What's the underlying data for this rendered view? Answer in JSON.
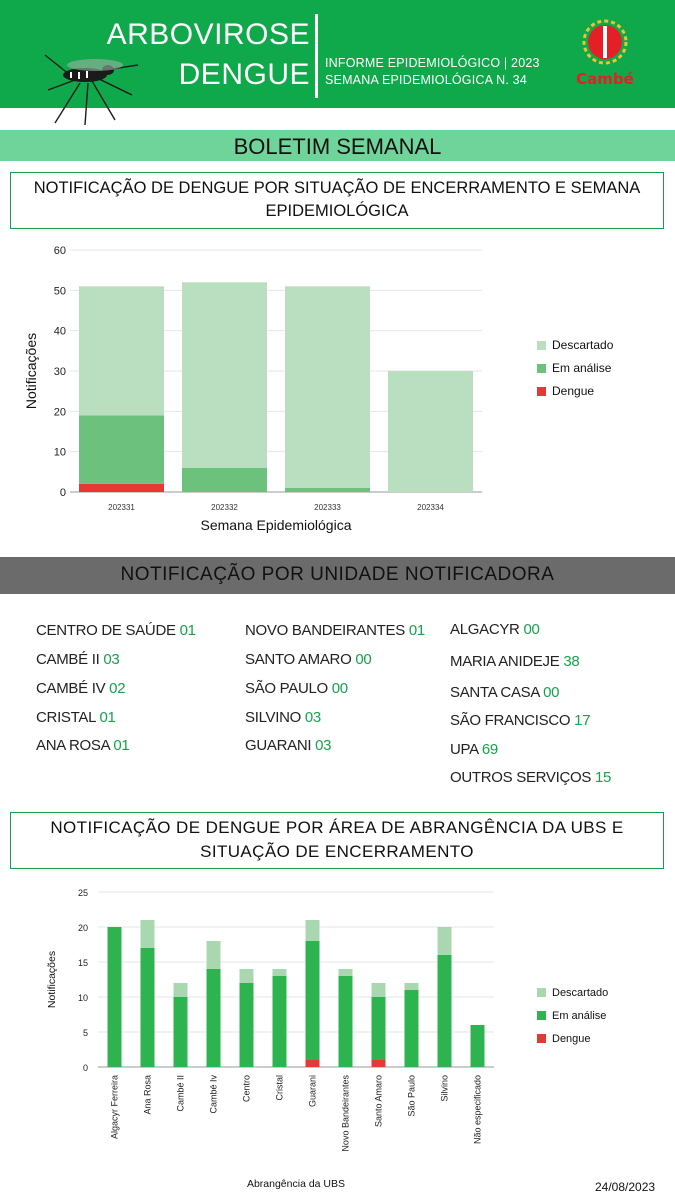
{
  "header": {
    "title_line1": "ARBOVIROSE",
    "title_line2": "DENGUE",
    "subtitle_line1": "INFORME EPIDEMIOLÓGICO | 2023",
    "subtitle_line2": "SEMANA EPIDEMIOLÓGICA  N. 34",
    "logo_text": "Cambé"
  },
  "band_title": "BOLETIM SEMANAL",
  "section1_title": "NOTIFICAÇÃO DE DENGUE POR SITUAÇÃO DE ENCERRAMENTO E SEMANA EPIDEMIOLÓGICA",
  "section2_title": "NOTIFICAÇÃO POR UNIDADE NOTIFICADORA",
  "section3_title": "NOTIFICAÇÃO DE DENGUE POR ÁREA DE ABRANGÊNCIA DA UBS E SITUAÇÃO DE ENCERRAMENTO",
  "units": {
    "col1": [
      {
        "name": "CENTRO  DE SAÚDE",
        "value": "01"
      },
      {
        "name": "CAMBÉ II",
        "value": "03"
      },
      {
        "name": "CAMBÉ IV",
        "value": "02"
      },
      {
        "name": "CRISTAL",
        "value": "01"
      },
      {
        "name": "ANA ROSA",
        "value": "01"
      }
    ],
    "col2": [
      {
        "name": "NOVO BANDEIRANTES",
        "value": "01"
      },
      {
        "name": "SANTO AMARO",
        "value": "00"
      },
      {
        "name": "SÃO PAULO",
        "value": "00"
      },
      {
        "name": "SILVINO",
        "value": "03"
      },
      {
        "name": "GUARANI",
        "value": "03"
      }
    ],
    "col3": [
      {
        "name": "ALGACYR",
        "value": "00"
      },
      {
        "name": "MARIA ANIDEJE",
        "value": "38"
      },
      {
        "name": "SANTA CASA",
        "value": "00"
      },
      {
        "name": "SÃO FRANCISCO",
        "value": "17"
      },
      {
        "name": "UPA",
        "value": "69"
      },
      {
        "name": "OUTROS SERVIÇOS",
        "value": "15"
      }
    ]
  },
  "date": "24/08/2023",
  "colors": {
    "brand_green": "#0fa84a",
    "descartado": "#b9dfc0",
    "em_analise": "#2db34f",
    "dengue": "#e53935"
  },
  "chart_data": [
    {
      "type": "bar",
      "stacked": true,
      "categories": [
        "202331",
        "202332",
        "202333",
        "202334"
      ],
      "series": [
        {
          "name": "Dengue",
          "values": [
            2,
            0,
            0,
            0
          ],
          "color": "#e53935"
        },
        {
          "name": "Em análise",
          "values": [
            17,
            6,
            1,
            0
          ],
          "color": "#6cc17c"
        },
        {
          "name": "Descartado",
          "values": [
            32,
            46,
            50,
            30
          ],
          "color": "#b9dfc0"
        }
      ],
      "legend_order": [
        "Descartado",
        "Em análise",
        "Dengue"
      ],
      "xlabel": "Semana Epidemiológica",
      "ylabel": "Notificações",
      "ylim": [
        0,
        60
      ],
      "yticks": [
        0,
        10,
        20,
        30,
        40,
        50,
        60
      ],
      "legend": "right"
    },
    {
      "type": "bar",
      "stacked": true,
      "categories": [
        "Algacyr Ferreira",
        "Ana Rosa",
        "Cambé II",
        "Cambé Iv",
        "Centro",
        "Cristal",
        "Guarani",
        "Novo Bandeirantes",
        "Santo Amaro",
        "São Paulo",
        "Silvino",
        "Não especificado"
      ],
      "series": [
        {
          "name": "Dengue",
          "values": [
            0,
            0,
            0,
            0,
            0,
            0,
            1,
            0,
            1,
            0,
            0,
            0
          ],
          "color": "#e53935"
        },
        {
          "name": "Em análise",
          "values": [
            20,
            17,
            10,
            14,
            12,
            13,
            17,
            13,
            9,
            11,
            16,
            6
          ],
          "color": "#2db34f"
        },
        {
          "name": "Descartado",
          "values": [
            0,
            4,
            2,
            4,
            2,
            1,
            3,
            1,
            2,
            1,
            4,
            0
          ],
          "color": "#a9d8b0"
        }
      ],
      "legend_order": [
        "Descartado",
        "Em análise",
        "Dengue"
      ],
      "xlabel": "Abrangência da UBS",
      "ylabel": "Notificações",
      "ylim": [
        0,
        25
      ],
      "yticks": [
        0,
        5,
        10,
        15,
        20,
        25
      ],
      "legend": "right"
    }
  ]
}
